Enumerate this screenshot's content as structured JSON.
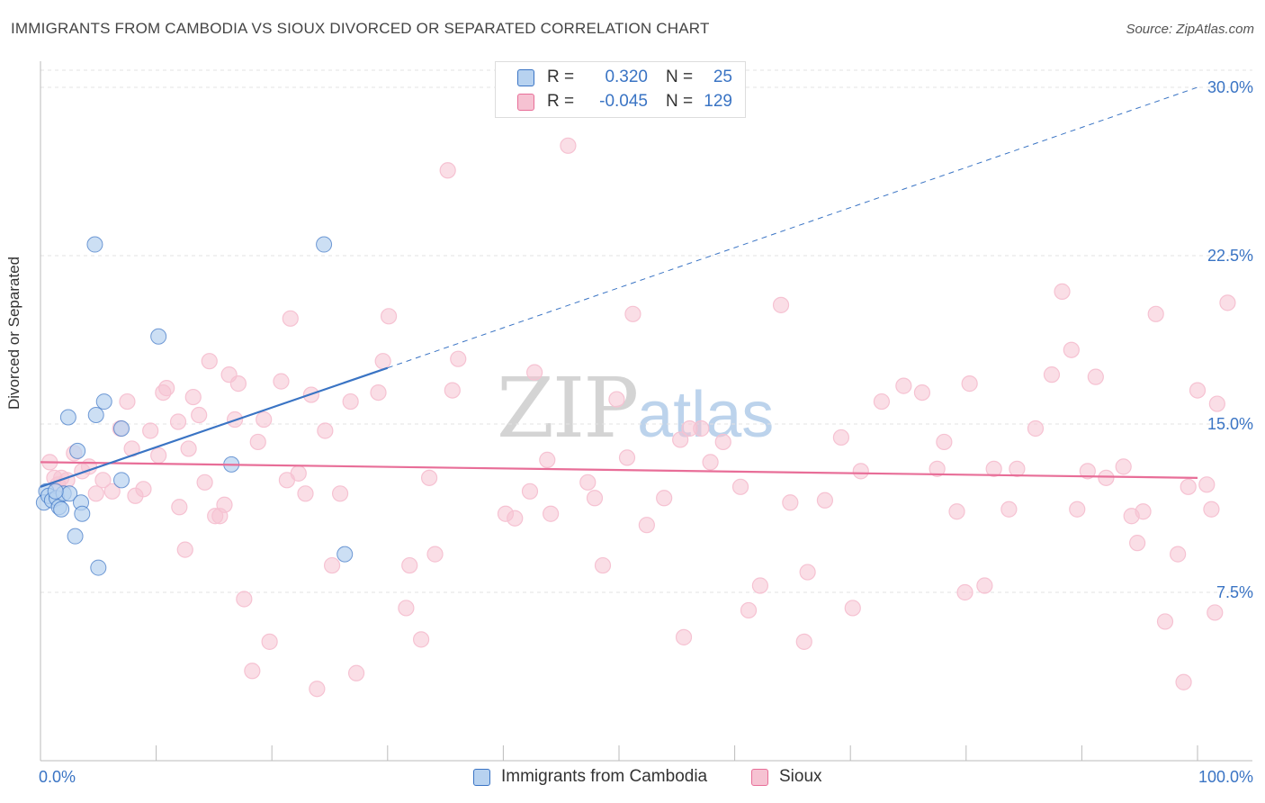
{
  "title": "IMMIGRANTS FROM CAMBODIA VS SIOUX DIVORCED OR SEPARATED CORRELATION CHART",
  "source": "Source: ZipAtlas.com",
  "watermark": {
    "zip": "ZIP",
    "atlas": "atlas"
  },
  "legend": {
    "row1": {
      "r_label": "R =",
      "r_value": "0.320",
      "n_label": "N =",
      "n_value": "25"
    },
    "row2": {
      "r_label": "R =",
      "r_value": "-0.045",
      "n_label": "N =",
      "n_value": "129"
    }
  },
  "colors": {
    "blue": "#3a74c4",
    "blue_fill": "#b7d2f0",
    "pink": "#e86e98",
    "pink_fill": "#f6c2d2",
    "grid": "#e3e3e3"
  },
  "chart_data": {
    "type": "scatter",
    "title": "IMMIGRANTS FROM CAMBODIA VS SIOUX DIVORCED OR SEPARATED CORRELATION CHART",
    "xlabel": "",
    "ylabel": "Divorced or Separated",
    "xlim": [
      0,
      100
    ],
    "ylim": [
      0,
      30
    ],
    "x_tick_labels": [
      "0.0%",
      "100.0%"
    ],
    "y_ticks": [
      7.5,
      15.0,
      22.5,
      30.0
    ],
    "y_tick_labels": [
      "7.5%",
      "15.0%",
      "22.5%",
      "30.0%"
    ],
    "grid": true,
    "legend_position": "top-center",
    "series": [
      {
        "name": "Immigrants from Cambodia",
        "color": "#3a74c4",
        "r": 0.32,
        "n": 25,
        "trend": {
          "x": [
            0,
            30
          ],
          "y": [
            12.2,
            17.5
          ],
          "extend_dashed_to": [
            100,
            30.0
          ]
        },
        "points": [
          [
            0.5,
            12.0
          ],
          [
            0.3,
            11.5
          ],
          [
            0.7,
            11.8
          ],
          [
            1.0,
            11.6
          ],
          [
            1.4,
            11.7
          ],
          [
            1.6,
            11.3
          ],
          [
            1.8,
            11.2
          ],
          [
            2.0,
            11.9
          ],
          [
            2.5,
            11.9
          ],
          [
            1.3,
            12.0
          ],
          [
            3.5,
            11.5
          ],
          [
            3.6,
            11.0
          ],
          [
            2.4,
            15.3
          ],
          [
            3.2,
            13.8
          ],
          [
            4.8,
            15.4
          ],
          [
            5.5,
            16.0
          ],
          [
            7.0,
            14.8
          ],
          [
            10.2,
            18.9
          ],
          [
            4.7,
            23.0
          ],
          [
            24.5,
            23.0
          ],
          [
            7.0,
            12.5
          ],
          [
            16.5,
            13.2
          ],
          [
            3.0,
            10.0
          ],
          [
            5.0,
            8.6
          ],
          [
            26.3,
            9.2
          ]
        ]
      },
      {
        "name": "Sioux",
        "color": "#e86e98",
        "r": -0.045,
        "n": 129,
        "trend": {
          "x": [
            0,
            100
          ],
          "y": [
            13.3,
            12.6
          ]
        },
        "points": [
          [
            0.8,
            13.3
          ],
          [
            1.2,
            12.6
          ],
          [
            1.5,
            12.3
          ],
          [
            1.8,
            12.6
          ],
          [
            2.3,
            12.5
          ],
          [
            2.9,
            13.7
          ],
          [
            3.6,
            12.9
          ],
          [
            4.2,
            13.1
          ],
          [
            4.8,
            11.9
          ],
          [
            5.4,
            12.5
          ],
          [
            6.2,
            12.0
          ],
          [
            6.9,
            14.8
          ],
          [
            7.5,
            16.0
          ],
          [
            7.9,
            13.9
          ],
          [
            8.2,
            11.8
          ],
          [
            8.9,
            12.1
          ],
          [
            9.5,
            14.7
          ],
          [
            10.2,
            13.6
          ],
          [
            10.6,
            16.4
          ],
          [
            10.9,
            16.6
          ],
          [
            11.9,
            15.1
          ],
          [
            12.0,
            11.3
          ],
          [
            12.5,
            9.4
          ],
          [
            12.8,
            13.9
          ],
          [
            13.2,
            16.2
          ],
          [
            13.7,
            15.4
          ],
          [
            14.2,
            12.4
          ],
          [
            14.6,
            17.8
          ],
          [
            15.1,
            10.9
          ],
          [
            15.5,
            10.9
          ],
          [
            15.9,
            11.4
          ],
          [
            16.3,
            17.2
          ],
          [
            16.8,
            15.2
          ],
          [
            17.1,
            16.8
          ],
          [
            17.6,
            7.2
          ],
          [
            18.3,
            4.0
          ],
          [
            18.8,
            14.2
          ],
          [
            19.3,
            15.2
          ],
          [
            19.8,
            5.3
          ],
          [
            20.8,
            16.9
          ],
          [
            21.3,
            12.5
          ],
          [
            21.6,
            19.7
          ],
          [
            22.3,
            12.8
          ],
          [
            22.9,
            11.9
          ],
          [
            23.4,
            16.3
          ],
          [
            23.9,
            3.2
          ],
          [
            24.6,
            14.7
          ],
          [
            25.2,
            8.7
          ],
          [
            25.9,
            11.9
          ],
          [
            26.8,
            16.0
          ],
          [
            27.3,
            3.9
          ],
          [
            29.2,
            16.4
          ],
          [
            29.6,
            17.8
          ],
          [
            30.1,
            19.8
          ],
          [
            31.6,
            6.8
          ],
          [
            31.9,
            8.7
          ],
          [
            32.9,
            5.4
          ],
          [
            33.6,
            12.6
          ],
          [
            34.1,
            9.2
          ],
          [
            35.2,
            26.3
          ],
          [
            35.6,
            16.5
          ],
          [
            36.1,
            17.9
          ],
          [
            40.2,
            11.0
          ],
          [
            41.0,
            10.8
          ],
          [
            42.3,
            12.0
          ],
          [
            42.7,
            17.3
          ],
          [
            43.8,
            13.4
          ],
          [
            44.1,
            11.0
          ],
          [
            45.6,
            27.4
          ],
          [
            47.3,
            12.4
          ],
          [
            47.9,
            11.7
          ],
          [
            48.6,
            8.7
          ],
          [
            49.8,
            16.1
          ],
          [
            50.7,
            13.5
          ],
          [
            51.2,
            19.9
          ],
          [
            52.4,
            10.5
          ],
          [
            53.9,
            11.7
          ],
          [
            55.3,
            14.3
          ],
          [
            55.6,
            5.5
          ],
          [
            56.1,
            14.8
          ],
          [
            57.1,
            14.8
          ],
          [
            57.9,
            13.3
          ],
          [
            59.0,
            14.2
          ],
          [
            60.5,
            12.2
          ],
          [
            61.2,
            6.7
          ],
          [
            62.2,
            7.8
          ],
          [
            64.0,
            20.3
          ],
          [
            64.8,
            11.5
          ],
          [
            66.0,
            5.3
          ],
          [
            66.3,
            8.4
          ],
          [
            67.8,
            11.6
          ],
          [
            69.2,
            14.4
          ],
          [
            70.2,
            6.8
          ],
          [
            70.9,
            12.9
          ],
          [
            72.7,
            16.0
          ],
          [
            74.6,
            16.7
          ],
          [
            76.2,
            16.4
          ],
          [
            77.5,
            13.0
          ],
          [
            78.1,
            14.2
          ],
          [
            79.2,
            11.1
          ],
          [
            79.9,
            7.5
          ],
          [
            80.3,
            16.8
          ],
          [
            81.6,
            7.8
          ],
          [
            82.4,
            13.0
          ],
          [
            83.7,
            11.2
          ],
          [
            84.4,
            13.0
          ],
          [
            86.0,
            14.8
          ],
          [
            87.4,
            17.2
          ],
          [
            88.3,
            20.9
          ],
          [
            89.1,
            18.3
          ],
          [
            89.6,
            11.2
          ],
          [
            90.5,
            12.9
          ],
          [
            91.2,
            17.1
          ],
          [
            92.1,
            12.6
          ],
          [
            93.6,
            13.1
          ],
          [
            94.3,
            10.9
          ],
          [
            94.8,
            9.7
          ],
          [
            95.3,
            11.1
          ],
          [
            96.4,
            19.9
          ],
          [
            97.2,
            6.2
          ],
          [
            98.3,
            9.2
          ],
          [
            99.2,
            12.2
          ],
          [
            100.0,
            16.5
          ],
          [
            100.8,
            12.3
          ],
          [
            101.2,
            11.2
          ],
          [
            101.5,
            6.6
          ],
          [
            101.7,
            15.9
          ],
          [
            102.6,
            20.4
          ],
          [
            98.8,
            3.5
          ]
        ]
      }
    ]
  },
  "bottom_legend": {
    "item1": "Immigrants from Cambodia",
    "item2": "Sioux"
  }
}
